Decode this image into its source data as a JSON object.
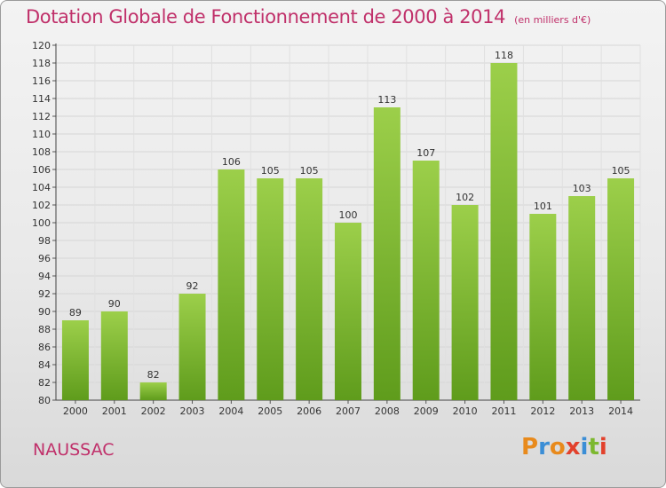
{
  "chart_data": {
    "type": "bar",
    "title": "Dotation Globale de Fonctionnement de 2000 à 2014",
    "subtitle": "(en milliers d'€)",
    "xlabel": "",
    "ylabel": "",
    "categories": [
      "2000",
      "2001",
      "2002",
      "2003",
      "2004",
      "2005",
      "2006",
      "2007",
      "2008",
      "2009",
      "2010",
      "2011",
      "2012",
      "2013",
      "2014"
    ],
    "values": [
      89,
      90,
      82,
      92,
      106,
      105,
      105,
      100,
      113,
      107,
      102,
      118,
      101,
      103,
      105
    ],
    "ylim": [
      80,
      120
    ],
    "yticks": [
      "80",
      "82",
      "84",
      "86",
      "88",
      "90",
      "92",
      "94",
      "96",
      "98",
      "100",
      "102",
      "104",
      "106",
      "108",
      "110",
      "112",
      "114",
      "116",
      "118",
      "120"
    ],
    "grid": true,
    "bar_color": "#7cb82f"
  },
  "footer": {
    "commune": "NAUSSAC",
    "logo": "Proxiti"
  }
}
